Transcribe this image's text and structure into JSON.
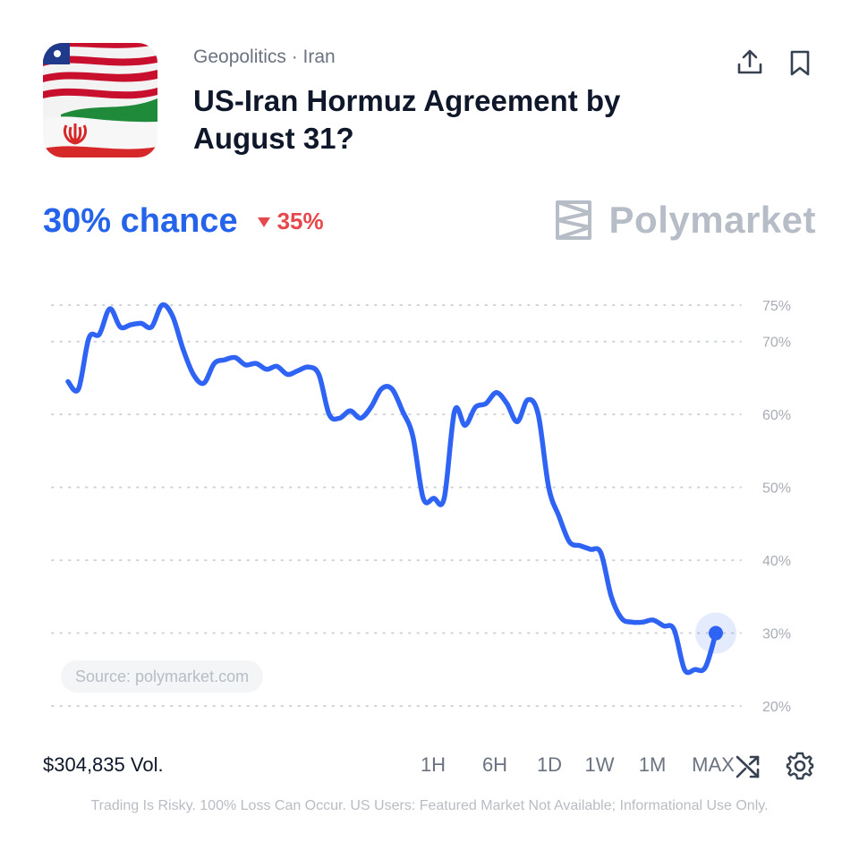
{
  "market": {
    "category": "Geopolitics · Iran",
    "title": "US-Iran Hormuz Agreement by August 31?",
    "thumbnail_icon": "us-iran-flags-image"
  },
  "actions": {
    "share_icon": "share-icon",
    "bookmark_icon": "bookmark-icon"
  },
  "odds": {
    "chance_text": "30% chance",
    "change_text": "35%",
    "change_direction": "down",
    "change_color": "#e5484d",
    "accent": "#2563eb"
  },
  "brand": {
    "name": "Polymarket",
    "logo_icon": "polymarket-logo-icon"
  },
  "chart_data": {
    "type": "line",
    "yticks": [
      "75%",
      "70%",
      "60%",
      "50%",
      "40%",
      "30%",
      "20%"
    ],
    "ytick_values": [
      75,
      70,
      60,
      50,
      40,
      30,
      20
    ],
    "ylim": [
      20,
      75
    ],
    "grid": true,
    "line_color": "#2f63f3",
    "series": [
      {
        "values": [
          64.5,
          63.5,
          70.5,
          71,
          74.5,
          72,
          72.3,
          72.5,
          72,
          75,
          73.5,
          69,
          65.5,
          64.3,
          67,
          67.5,
          67.8,
          66.8,
          67,
          66.2,
          66.6,
          65.5,
          66,
          66.5,
          65.5,
          60,
          59.5,
          60.5,
          59.5,
          61,
          63.5,
          63.5,
          60.5,
          57,
          48.5,
          48.5,
          48.5,
          60.5,
          58.5,
          61,
          61.5,
          63,
          61.5,
          59,
          62,
          60,
          50,
          46,
          42.5,
          42,
          41.5,
          41,
          35,
          32,
          31.5,
          31.5,
          31.8,
          31,
          30.5,
          25,
          25,
          25.3,
          30
        ]
      }
    ],
    "last_value": 30
  },
  "source": {
    "label": "Source: polymarket.com"
  },
  "volume": {
    "label": "$304,835 Vol."
  },
  "ranges": [
    "1H",
    "6H",
    "1D",
    "1W",
    "1M",
    "MAX"
  ],
  "footer_icons": {
    "shuffle_icon": "shuffle-icon",
    "settings_icon": "gear-icon"
  },
  "disclaimer": "Trading Is Risky. 100% Loss Can Occur. US Users: Featured Market Not Available; Informational Use Only."
}
